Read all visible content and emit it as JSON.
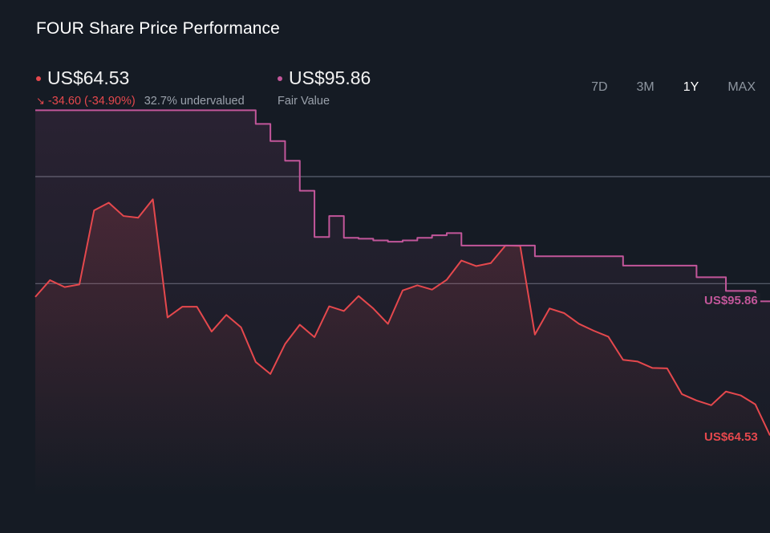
{
  "title": "FOUR Share Price Performance",
  "price": {
    "value": "US$64.53",
    "change": "-34.60 (-34.90%)",
    "change_icon": "down-right-arrow-icon",
    "valuation_note": "32.7% undervalued",
    "color": "#e5484d"
  },
  "fair_value": {
    "value": "US$95.86",
    "label": "Fair Value",
    "color": "#c2569a"
  },
  "tabs": [
    {
      "label": "7D",
      "active": false
    },
    {
      "label": "3M",
      "active": false
    },
    {
      "label": "1Y",
      "active": true
    },
    {
      "label": "MAX",
      "active": false
    }
  ],
  "chart_data": {
    "type": "line",
    "title": "FOUR Share Price Performance",
    "x": [
      0,
      2,
      4,
      6,
      8,
      10,
      12,
      14,
      16,
      18,
      20,
      22,
      24,
      26,
      28,
      30,
      32,
      34,
      36,
      38,
      40,
      42,
      44,
      46,
      48,
      50,
      52,
      54,
      56,
      58,
      60,
      62,
      64,
      66,
      68,
      70,
      72,
      74,
      76,
      78,
      80,
      82,
      84,
      86,
      88,
      90,
      92,
      94,
      96,
      98,
      100
    ],
    "ylim": [
      50,
      140
    ],
    "series": [
      {
        "name": "",
        "color": "#e5484d",
        "values": [
          96.9,
          100.8,
          99.2,
          99.8,
          117.1,
          118.9,
          115.8,
          115.4,
          119.7,
          92.1,
          94.6,
          94.6,
          88.8,
          92.7,
          89.8,
          81.7,
          78.9,
          85.9,
          90.4,
          87.5,
          94.7,
          93.6,
          97.1,
          94.2,
          90.6,
          98.4,
          99.6,
          98.6,
          100.9,
          105.4,
          104.1,
          104.8,
          108.9,
          108.8,
          88.1,
          94.2,
          93.1,
          90.6,
          89.0,
          87.6,
          82.2,
          81.8,
          80.3,
          80.2,
          74.2,
          72.7,
          71.6,
          74.8,
          73.9,
          71.8,
          64.53
        ]
      },
      {
        "name": "",
        "color": "#c2569a",
        "values": [
          140.5,
          140.5,
          140.5,
          140.5,
          140.5,
          140.5,
          140.5,
          140.5,
          140.5,
          140.5,
          140.5,
          140.5,
          140.5,
          140.5,
          140.5,
          137.3,
          133.3,
          128.7,
          121.7,
          110.9,
          115.8,
          110.7,
          110.5,
          110.1,
          109.8,
          110.1,
          110.7,
          111.3,
          111.8,
          108.9,
          108.9,
          108.9,
          108.9,
          108.9,
          106.4,
          106.4,
          106.4,
          106.4,
          106.4,
          106.4,
          104.2,
          104.2,
          104.2,
          104.2,
          104.2,
          101.5,
          101.5,
          98.3,
          98.3,
          95.86,
          95.86
        ]
      }
    ],
    "gridlines_y": [
      125,
      100
    ],
    "end_labels": [
      "US$95.86",
      "US$64.53"
    ],
    "grid": true,
    "legend": "top-left"
  }
}
